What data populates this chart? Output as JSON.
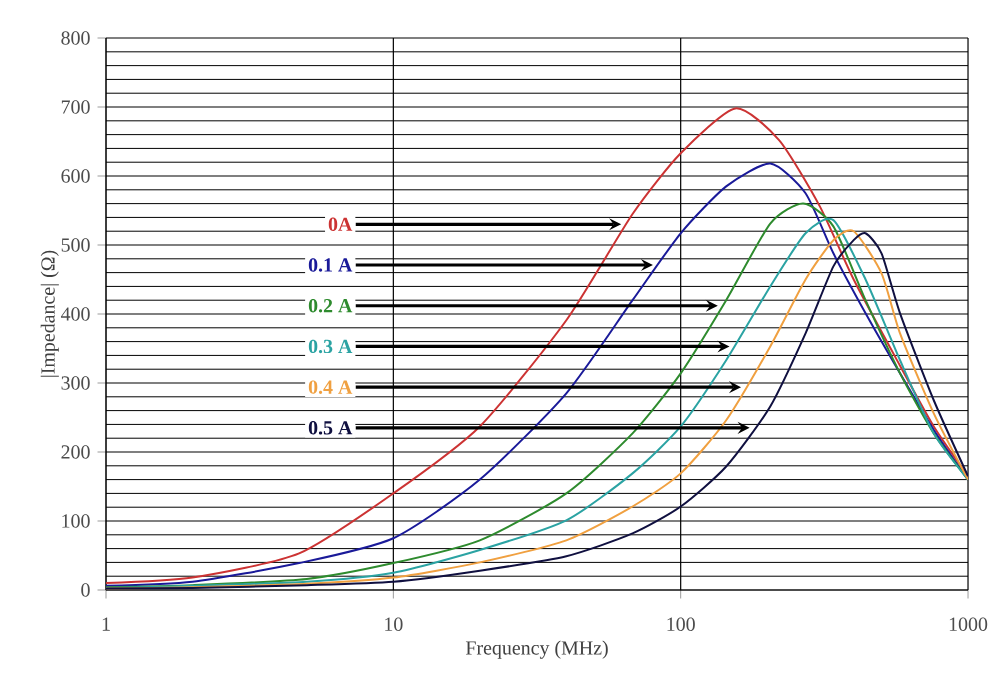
{
  "chart_data": {
    "type": "line",
    "xlabel": "Frequency (MHz)",
    "ylabel": "|Impedance| (Ω)",
    "log": "x",
    "xlim": [
      1,
      1000
    ],
    "xticks": [
      1,
      10,
      100,
      1000
    ],
    "ylim": [
      0,
      800
    ],
    "yticks": [
      0,
      100,
      200,
      300,
      400,
      500,
      600,
      700,
      800
    ],
    "grid": true,
    "marker": "none",
    "line_style": "solid",
    "series": [
      {
        "name": "0A",
        "color": "#cc3333",
        "x": [
          1,
          2,
          4.7,
          10,
          20,
          40,
          68,
          100,
          155,
          220,
          305,
          400,
          580,
          760,
          1000
        ],
        "values": [
          10,
          18,
          53,
          140,
          237,
          391,
          545,
          633,
          698,
          652,
          556,
          450,
          325,
          237,
          165
        ]
      },
      {
        "name": "0.1 A",
        "color": "#1a1a99",
        "x": [
          1,
          2,
          4.7,
          10,
          20,
          40,
          68,
          100,
          144,
          205,
          272,
          340,
          440,
          580,
          760,
          1000
        ],
        "values": [
          6,
          12,
          39,
          75,
          160,
          285,
          420,
          517,
          585,
          618,
          575,
          488,
          401,
          314,
          232,
          160
        ]
      },
      {
        "name": "0.2 A",
        "color": "#2e8b2e",
        "x": [
          1,
          2,
          5,
          10,
          20,
          40,
          68,
          100,
          144,
          205,
          267,
          340,
          440,
          580,
          760,
          1000
        ],
        "values": [
          4,
          7,
          16,
          39,
          72,
          140,
          227,
          314,
          420,
          531,
          560,
          527,
          420,
          314,
          227,
          160
        ]
      },
      {
        "name": "0.3 A",
        "color": "#2ba3a3",
        "x": [
          1,
          2,
          5,
          10,
          20,
          40,
          68,
          100,
          144,
          205,
          272,
          340,
          440,
          580,
          760,
          1000
        ],
        "values": [
          3,
          6,
          12,
          25,
          58,
          101,
          169,
          237,
          333,
          440,
          517,
          536,
          450,
          333,
          227,
          160
        ]
      },
      {
        "name": "0.4 A",
        "color": "#f0a040",
        "x": [
          1,
          2,
          5,
          10,
          20,
          40,
          68,
          100,
          144,
          205,
          272,
          340,
          400,
          500,
          580,
          760,
          1000
        ],
        "values": [
          2,
          4,
          9,
          18,
          40,
          72,
          121,
          169,
          246,
          353,
          450,
          507,
          520,
          459,
          372,
          256,
          160
        ]
      },
      {
        "name": "0.5 A",
        "color": "#101040",
        "x": [
          1,
          2,
          5,
          10,
          20,
          40,
          68,
          100,
          144,
          205,
          272,
          340,
          400,
          440,
          500,
          580,
          760,
          1000
        ],
        "values": [
          2,
          3,
          7,
          12,
          28,
          49,
          82,
          121,
          179,
          266,
          372,
          469,
          507,
          517,
          488,
          401,
          275,
          165
        ]
      }
    ]
  }
}
